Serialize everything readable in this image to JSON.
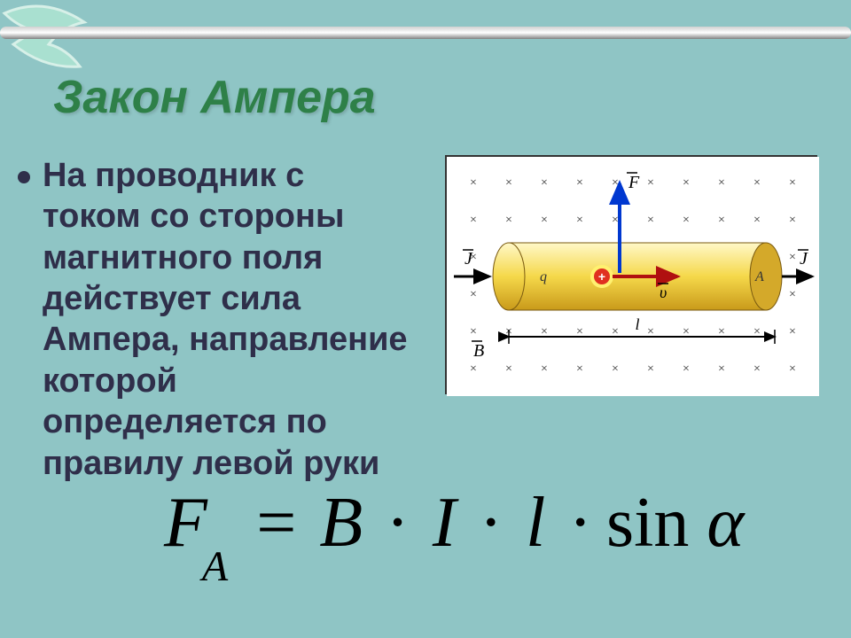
{
  "slide": {
    "background_color": "#8fc5c5",
    "accent_color": "#2e8048",
    "text_color": "#2f2f4a",
    "title": "Закон Ампера",
    "body": "На проводник с током со стороны магнитного поля действует сила Ампера, направление которой определяется по правилу левой руки",
    "formula": {
      "lhs_symbol": "F",
      "lhs_subscript": "A",
      "eq": "=",
      "term1": "B",
      "dot": "·",
      "term2": "I",
      "term3": "l",
      "fn": "sin",
      "angle": "α",
      "fontsize": 80
    }
  },
  "decoration": {
    "swoosh_colors": [
      "#a9e0d0",
      "#d7f0e8"
    ],
    "bar_gradient": [
      "#d0d0d0",
      "#ffffff",
      "#808080"
    ]
  },
  "diagram": {
    "type": "physics-illustration",
    "background": "#ffffff",
    "field_marker": "×",
    "field_marker_color": "#333333",
    "field_grid": {
      "cols": 10,
      "rows": 6
    },
    "conductor": {
      "fill_gradient": [
        "#fff8c8",
        "#f5d84a",
        "#c99a1a"
      ],
      "end_cap_color": "#d4a92a",
      "left_label": "q",
      "right_label": "A"
    },
    "current_arrow": {
      "label": "J",
      "color": "#000000"
    },
    "force_arrow": {
      "label": "F",
      "color": "#0038d0"
    },
    "velocity_arrow": {
      "label": "υ",
      "color": "#b01010"
    },
    "charge": {
      "symbol": "+",
      "fill": "#e03020",
      "ring": "#fff170"
    },
    "B_label": "B",
    "length_label": "l"
  }
}
